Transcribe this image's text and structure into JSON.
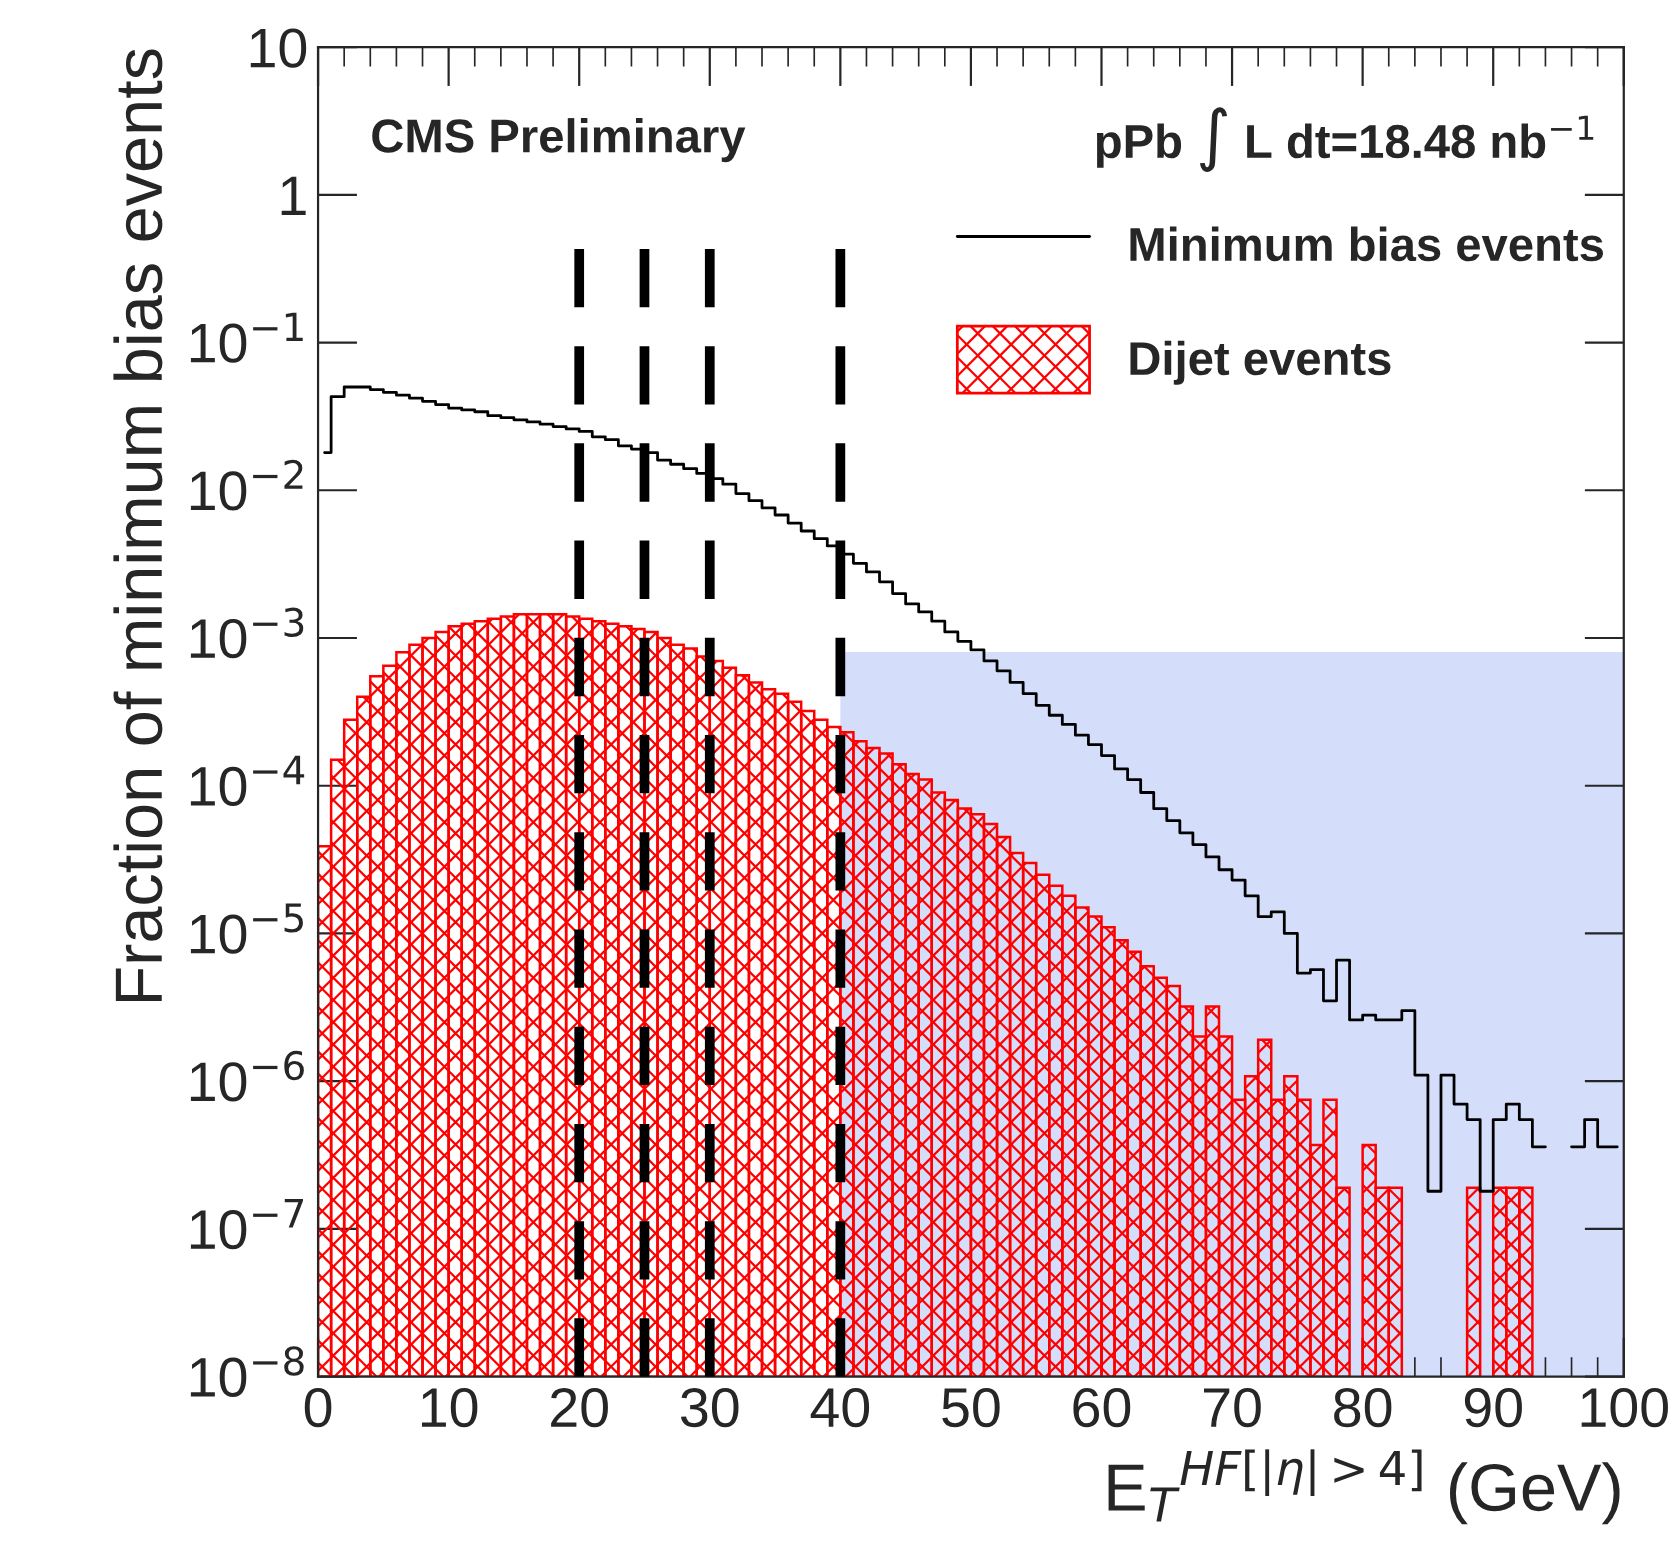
{
  "chart_data": {
    "type": "histogram",
    "xlabel": "E$_{T}$$^{HF[|η|>4]}$ (GeV)",
    "ylabel": "Fraction of minimum bias events",
    "annotations": [
      "CMS Preliminary",
      "pPb ∫ L dt=18.48 nb$^{−1}$"
    ],
    "bins": [
      0,
      1,
      2,
      3,
      4,
      5,
      6,
      7,
      8,
      9,
      10,
      11,
      12,
      13,
      14,
      15,
      16,
      17,
      18,
      19,
      20,
      21,
      22,
      23,
      24,
      25,
      26,
      27,
      28,
      29,
      30,
      31,
      32,
      33,
      34,
      35,
      36,
      37,
      38,
      39,
      40,
      41,
      42,
      43,
      44,
      45,
      46,
      47,
      48,
      49,
      50,
      51,
      52,
      53,
      54,
      55,
      56,
      57,
      58,
      59,
      60,
      61,
      62,
      63,
      64,
      65,
      66,
      67,
      68,
      69,
      70,
      71,
      72,
      73,
      74,
      75,
      76,
      77,
      78,
      79,
      80,
      81,
      82,
      83,
      84,
      85,
      86,
      87,
      88,
      89,
      90,
      91,
      92,
      93,
      94,
      95,
      96,
      97,
      98,
      99,
      100
    ],
    "series": [
      {
        "name": "Minimum bias events",
        "type": "step",
        "color": "#000000",
        "x": [
          0.5,
          1.5,
          2.5,
          3.5,
          4.5,
          5.5,
          6.5,
          7.5,
          8.5,
          9.5,
          10.5,
          11.5,
          12.5,
          13.5,
          14.5,
          15.5,
          16.5,
          17.5,
          18.5,
          19.5,
          20.5,
          21.5,
          22.5,
          23.5,
          24.5,
          25.5,
          26.5,
          27.5,
          28.5,
          29.5,
          30.5,
          31.5,
          32.5,
          33.5,
          34.5,
          35.5,
          36.5,
          37.5,
          38.5,
          39.5,
          40.5,
          41.5,
          42.5,
          43.5,
          44.5,
          45.5,
          46.5,
          47.5,
          48.5,
          49.5,
          50.5,
          51.5,
          52.5,
          53.5,
          54.5,
          55.5,
          56.5,
          57.5,
          58.5,
          59.5,
          60.5,
          61.5,
          62.5,
          63.5,
          64.5,
          65.5,
          66.5,
          67.5,
          68.5,
          69.5,
          70.5,
          71.5,
          72.5,
          73.5,
          74.5,
          75.5,
          76.5,
          77.5,
          78.5,
          79.5,
          80.5,
          81.5,
          82.5,
          83.5,
          84.5,
          85.5,
          86.5,
          87.5,
          88.5,
          89.5,
          90.5,
          91.5,
          92.5,
          93.5,
          94.5,
          95.5,
          96.5,
          97.5,
          98.5,
          99.5
        ],
        "values": [
          0.018,
          0.043,
          0.05,
          0.05,
          0.048,
          0.046,
          0.044,
          0.042,
          0.04,
          0.038,
          0.036,
          0.035,
          0.034,
          0.032,
          0.031,
          0.03,
          0.029,
          0.028,
          0.027,
          0.026,
          0.025,
          0.023,
          0.022,
          0.02,
          0.019,
          0.018,
          0.016,
          0.015,
          0.014,
          0.013,
          0.012,
          0.011,
          0.0095,
          0.0085,
          0.0076,
          0.0068,
          0.006,
          0.0053,
          0.0047,
          0.0042,
          0.0037,
          0.0032,
          0.0028,
          0.0024,
          0.002,
          0.0017,
          0.0015,
          0.0013,
          0.0011,
          0.00095,
          0.00083,
          0.0007,
          0.0006,
          0.0005,
          0.00042,
          0.00035,
          0.0003,
          0.00026,
          0.00022,
          0.00019,
          0.00016,
          0.00013,
          0.00011,
          9e-05,
          7e-05,
          5.8e-05,
          4.8e-05,
          4e-05,
          3.3e-05,
          2.7e-05,
          2.3e-05,
          1.8e-05,
          1.3e-05,
          1.4e-05,
          1e-05,
          5.4e-06,
          5.7e-06,
          3.5e-06,
          6.6e-06,
          2.6e-06,
          2.8e-06,
          2.6e-06,
          2.6e-06,
          3e-06,
          1.1e-06,
          1.8e-07,
          1.1e-06,
          7e-07,
          5.5e-07,
          1.8e-07,
          5.5e-07,
          7e-07,
          5.5e-07,
          3.6e-07,
          null,
          null,
          3.6e-07,
          5.5e-07,
          3.6e-07,
          3.6e-07
        ]
      },
      {
        "name": "Dijet events",
        "color": "#ff0000",
        "values": [
          3.9e-05,
          0.00015,
          0.00028,
          0.0004,
          0.00055,
          0.00065,
          0.0008,
          0.0009,
          0.001,
          0.0011,
          0.0012,
          0.00125,
          0.0013,
          0.00135,
          0.0014,
          0.00145,
          0.00145,
          0.00145,
          0.00145,
          0.0014,
          0.00135,
          0.0013,
          0.00125,
          0.0012,
          0.00115,
          0.0011,
          0.001,
          0.0009,
          0.00085,
          0.00075,
          0.0007,
          0.00063,
          0.00056,
          0.0005,
          0.00045,
          0.00042,
          0.00037,
          0.00032,
          0.00028,
          0.00025,
          0.00023,
          0.0002,
          0.00018,
          0.000165,
          0.00014,
          0.00012,
          0.00011,
          9e-05,
          8e-05,
          7e-05,
          6.4e-05,
          5.5e-05,
          4.5e-05,
          3.5e-05,
          3e-05,
          2.5e-05,
          2.1e-05,
          1.8e-05,
          1.5e-05,
          1.3e-05,
          1.1e-05,
          9e-06,
          7.5e-06,
          6e-06,
          5e-06,
          4.4e-06,
          3.2e-06,
          2e-06,
          3.2e-06,
          2e-06,
          7.4e-07,
          1.07e-06,
          1.9e-06,
          7.4e-07,
          1.07e-06,
          7.4e-07,
          3.6e-07,
          7.4e-07,
          1.8e-07,
          null,
          3.6e-07,
          1.8e-07,
          1.8e-07,
          null,
          null,
          null,
          null,
          null,
          1.8e-07,
          null,
          1.8e-07,
          1.8e-07,
          1.8e-07,
          null,
          null,
          null,
          null,
          null,
          null,
          null
        ]
      }
    ],
    "ref_lines": [
      {
        "axis": "x",
        "value": 20,
        "color": "#000000",
        "line_style": "dashed"
      },
      {
        "axis": "x",
        "value": 25,
        "color": "#000000",
        "line_style": "dashed"
      },
      {
        "axis": "x",
        "value": 30,
        "color": "#000000",
        "line_style": "dashed"
      },
      {
        "axis": "x",
        "value": 40,
        "color": "#000000",
        "line_style": "dashed"
      }
    ],
    "bands": [
      {
        "axis": "x",
        "from": 40,
        "to": 100,
        "color": "#d4defa"
      }
    ],
    "log": "y",
    "xlim": [
      0,
      100
    ],
    "xticks": [
      0,
      10,
      20,
      30,
      40,
      50,
      60,
      70,
      80,
      90,
      100
    ],
    "ylim": [
      1e-08,
      10
    ],
    "yticks": [
      {
        "value": 1e-08,
        "label": "10$^{−8}$"
      },
      {
        "value": 1e-07,
        "label": "10$^{−7}$"
      },
      {
        "value": 1e-06,
        "label": "10$^{−6}$"
      },
      {
        "value": 1e-05,
        "label": "10$^{−5}$"
      },
      {
        "value": 0.0001,
        "label": "10$^{−4}$"
      },
      {
        "value": 0.001,
        "label": "10$^{−3}$"
      },
      {
        "value": 0.01,
        "label": "10$^{−2}$"
      },
      {
        "value": 0.1,
        "label": "10$^{−1}$"
      },
      {
        "value": 1,
        "label": "1"
      },
      {
        "value": 10,
        "label": "10"
      }
    ],
    "grid": false,
    "legend": "top right"
  }
}
